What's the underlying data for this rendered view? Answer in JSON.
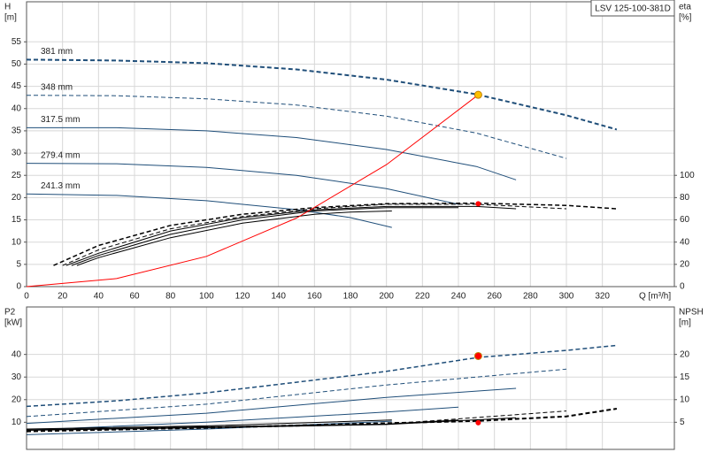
{
  "chart_data": [
    {
      "type": "line",
      "title": "LSV 125-100-381D",
      "xlabel": "Q [m³/h]",
      "ylabel": "H",
      "yunit": "[m]",
      "y2label": "eta",
      "y2unit": "[%]",
      "xlim": [
        0,
        360
      ],
      "ylim": [
        0,
        64
      ],
      "y2lim": [
        0,
        256
      ],
      "xticks": [
        0,
        20,
        40,
        60,
        80,
        100,
        120,
        140,
        160,
        180,
        200,
        220,
        240,
        260,
        280,
        300,
        320
      ],
      "yticks": [
        0,
        5,
        10,
        15,
        20,
        25,
        30,
        35,
        40,
        45,
        50,
        55
      ],
      "y2ticks": [
        0,
        20,
        40,
        60,
        80,
        100
      ],
      "grid": true,
      "series": [
        {
          "name": "381 mm",
          "color": "#1f4e79",
          "dash": "dashed",
          "width": 2,
          "x": [
            0,
            50,
            100,
            150,
            200,
            250,
            300,
            328
          ],
          "values": [
            51,
            50.8,
            50.2,
            48.8,
            46.5,
            43.2,
            38.5,
            35.3
          ]
        },
        {
          "name": "348 mm",
          "color": "#1f4e79",
          "dash": "dashed",
          "width": 1,
          "x": [
            0,
            50,
            100,
            150,
            200,
            250,
            300
          ],
          "values": [
            43,
            42.9,
            42.2,
            40.8,
            38.3,
            34.5,
            28.8
          ]
        },
        {
          "name": "317.5 mm",
          "color": "#1f4e79",
          "dash": "solid",
          "width": 1,
          "x": [
            0,
            50,
            100,
            150,
            200,
            250,
            272
          ],
          "values": [
            35.7,
            35.7,
            35.0,
            33.5,
            30.8,
            27,
            24
          ]
        },
        {
          "name": "279.4 mm",
          "color": "#1f4e79",
          "dash": "solid",
          "width": 1,
          "x": [
            0,
            50,
            100,
            150,
            200,
            240
          ],
          "values": [
            27.7,
            27.6,
            26.8,
            25,
            22,
            18.5
          ]
        },
        {
          "name": "241.3 mm",
          "color": "#1f4e79",
          "dash": "solid",
          "width": 1,
          "x": [
            0,
            50,
            100,
            150,
            180,
            203
          ],
          "values": [
            20.8,
            20.5,
            19.3,
            17.3,
            15.5,
            13.3
          ]
        },
        {
          "color": "#000000",
          "dash": "dashed",
          "width": 1.5,
          "axis": "y2",
          "x": [
            15,
            40,
            80,
            120,
            160,
            200,
            250,
            300,
            328
          ],
          "values": [
            19,
            37,
            55,
            65,
            71,
            74.5,
            75,
            73,
            70
          ]
        },
        {
          "color": "#000000",
          "dash": "dashed",
          "width": 1,
          "axis": "y2",
          "x": [
            20,
            40,
            80,
            120,
            160,
            200,
            250,
            300
          ],
          "values": [
            19,
            33,
            52,
            63,
            70,
            74,
            74,
            70
          ]
        },
        {
          "color": "#000000",
          "dash": "solid",
          "width": 1,
          "axis": "y2",
          "x": [
            22,
            40,
            80,
            120,
            160,
            200,
            250,
            272
          ],
          "values": [
            19,
            30,
            50,
            62,
            69,
            72,
            72,
            70
          ]
        },
        {
          "color": "#000000",
          "dash": "solid",
          "width": 1,
          "axis": "y2",
          "x": [
            25,
            40,
            80,
            120,
            160,
            200,
            240
          ],
          "values": [
            19,
            28,
            47,
            60,
            68,
            71,
            71
          ]
        },
        {
          "color": "#000000",
          "dash": "solid",
          "width": 1,
          "axis": "y2",
          "x": [
            28,
            40,
            80,
            120,
            160,
            180,
            203
          ],
          "values": [
            19,
            26,
            44,
            57,
            65,
            67,
            68
          ]
        },
        {
          "color": "#ff0000",
          "dash": "solid",
          "width": 1,
          "x": [
            0,
            50,
            100,
            150,
            200,
            251
          ],
          "values": [
            0,
            1.8,
            6.8,
            15.4,
            27.4,
            43.1
          ]
        }
      ],
      "points": [
        {
          "x": 251,
          "value": 43.1,
          "color": "#ffc000"
        },
        {
          "x": 251,
          "value": 74.4,
          "color": "#ff0000",
          "axis": "y2"
        }
      ]
    },
    {
      "type": "line",
      "ylabel": "P2",
      "yunit": "[kW]",
      "y2label": "NPSH",
      "y2unit": "[m]",
      "xlim": [
        0,
        360
      ],
      "ylim": [
        -2,
        61
      ],
      "y2lim": [
        -1,
        30.5
      ],
      "xticks": [
        0,
        20,
        40,
        60,
        80,
        100,
        120,
        140,
        160,
        180,
        200,
        220,
        240,
        260,
        280,
        300,
        320
      ],
      "yticks": [
        10,
        20,
        30,
        40
      ],
      "y2ticks": [
        5,
        10,
        15,
        20
      ],
      "grid": true,
      "series": [
        {
          "color": "#1f4e79",
          "dash": "dashed",
          "width": 1.5,
          "x": [
            0,
            50,
            100,
            150,
            200,
            251,
            300,
            328
          ],
          "values": [
            17,
            19.5,
            23,
            27.7,
            32.5,
            38.7,
            41.8,
            44
          ]
        },
        {
          "color": "#1f4e79",
          "dash": "dashed",
          "width": 1,
          "x": [
            0,
            100,
            200,
            300
          ],
          "values": [
            12.5,
            18,
            26.5,
            33.5
          ]
        },
        {
          "color": "#1f4e79",
          "dash": "solid",
          "width": 1,
          "x": [
            0,
            100,
            200,
            272
          ],
          "values": [
            9.5,
            14,
            21,
            25
          ]
        },
        {
          "color": "#1f4e79",
          "dash": "solid",
          "width": 1,
          "x": [
            0,
            100,
            200,
            240
          ],
          "values": [
            6.5,
            10,
            14.5,
            16.7
          ]
        },
        {
          "color": "#1f4e79",
          "dash": "solid",
          "width": 1,
          "x": [
            0,
            100,
            203
          ],
          "values": [
            4.5,
            7,
            10.5
          ]
        },
        {
          "color": "#000000",
          "dash": "dashed",
          "width": 2,
          "axis": "y2",
          "x": [
            0,
            100,
            200,
            251,
            300,
            328
          ],
          "values": [
            3,
            3.8,
            4.8,
            5.3,
            6.3,
            8
          ]
        },
        {
          "color": "#000000",
          "dash": "dashed",
          "width": 1,
          "axis": "y2",
          "x": [
            0,
            100,
            200,
            300
          ],
          "values": [
            3,
            3.7,
            4.6,
            7.5
          ]
        },
        {
          "color": "#000000",
          "dash": "solid",
          "width": 1,
          "axis": "y2",
          "x": [
            0,
            100,
            200,
            272
          ],
          "values": [
            3.2,
            3.8,
            4.5,
            6
          ]
        },
        {
          "color": "#000000",
          "dash": "solid",
          "width": 1,
          "axis": "y2",
          "x": [
            0,
            100,
            200,
            240
          ],
          "values": [
            3.3,
            4,
            4.6,
            5.5
          ]
        },
        {
          "color": "#000000",
          "dash": "solid",
          "width": 1,
          "axis": "y2",
          "x": [
            0,
            100,
            203
          ],
          "values": [
            3.5,
            4.2,
            5.5
          ]
        }
      ],
      "points": [
        {
          "x": 251,
          "value": 39.3,
          "color": "#ff0000"
        },
        {
          "x": 251,
          "value": 4.9,
          "color": "#ff0000",
          "axis": "y2"
        }
      ]
    }
  ]
}
